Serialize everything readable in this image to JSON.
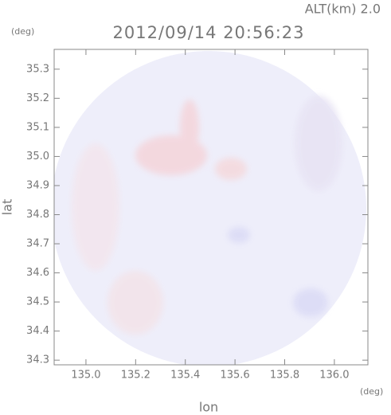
{
  "chart_data": {
    "type": "radar-image",
    "title": "2012/09/14 20:56:23",
    "altitude_label": "ALT(km) 2.0",
    "y_unit": "(deg)",
    "x_unit": "(deg)",
    "xlabel": "lon",
    "ylabel": "lat",
    "xlim": [
      134.872,
      136.135
    ],
    "ylim": [
      34.284,
      35.368
    ],
    "xticks": [
      {
        "value": 135.0,
        "label": "135.0"
      },
      135.2,
      135.4,
      135.6,
      135.8,
      {
        "value": 136.0,
        "label": "136.0"
      }
    ],
    "yticks": [
      34.3,
      34.4,
      34.5,
      34.6,
      34.7,
      34.8,
      34.9,
      {
        "value": 35.0,
        "label": "35.0"
      },
      35.1,
      35.2,
      35.3
    ]
  }
}
